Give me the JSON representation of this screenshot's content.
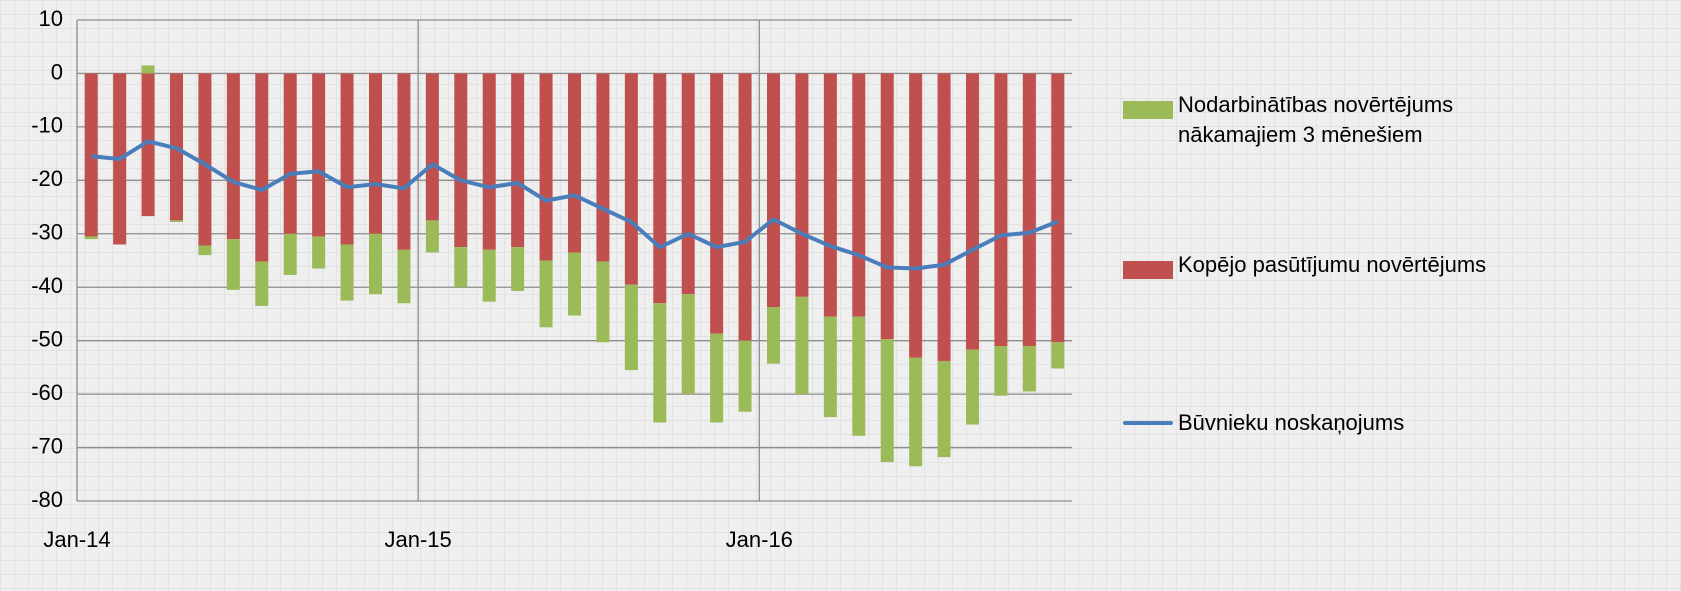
{
  "chart_data": {
    "type": "bar",
    "categories": [
      "Jan-14",
      null,
      null,
      null,
      null,
      null,
      null,
      null,
      null,
      null,
      null,
      null,
      "Jan-15",
      null,
      null,
      null,
      null,
      null,
      null,
      null,
      null,
      null,
      null,
      null,
      "Jan-16",
      null,
      null,
      null,
      null,
      null,
      null,
      null,
      null,
      null,
      null
    ],
    "stacked": true,
    "series": [
      {
        "name": "Kopējo pasūtījumu novērtējums",
        "type": "bar",
        "color": "#c0504d",
        "values": [
          -30.5,
          -32,
          -26.7,
          -27.5,
          -32.2,
          -31,
          -35.2,
          -30,
          -30.5,
          -32,
          -30,
          -33,
          -27.5,
          -32.5,
          -33,
          -32.5,
          -35,
          -33.5,
          -35.2,
          -39.5,
          -43,
          -41.3,
          -48.7,
          -50,
          -43.7,
          -41.8,
          -45.5,
          -45.5,
          -49.7,
          -53.2,
          -53.8,
          -51.7,
          -51,
          -51,
          -50.3
        ]
      },
      {
        "name": "Nodarbinātības novērtējums nākamajiem 3 mēnešiem",
        "type": "bar",
        "color": "#9bbb59",
        "values": [
          -0.5,
          0,
          1.5,
          -0.3,
          -1.8,
          -9.5,
          -8.3,
          -7.7,
          -6,
          -10.5,
          -11.3,
          -10,
          -6,
          -7.5,
          -9.7,
          -8.2,
          -12.5,
          -11.8,
          -15.1,
          -16,
          -22.3,
          -18.7,
          -16.6,
          -13.3,
          -10.6,
          -18.2,
          -18.8,
          -22.3,
          -23,
          -20.3,
          -18,
          -14,
          -9.3,
          -8.5,
          -4.9
        ]
      },
      {
        "name": "Būvnieku noskaņojums",
        "type": "line",
        "color": "#4a7ebb",
        "values": [
          -15.5,
          -16,
          -12.7,
          -14,
          -17,
          -20.3,
          -21.8,
          -18.8,
          -18.3,
          -21.3,
          -20.7,
          -21.5,
          -17,
          -20,
          -21.3,
          -20.5,
          -23.8,
          -22.8,
          -25.3,
          -27.8,
          -32.5,
          -30,
          -32.5,
          -31.5,
          -27.3,
          -30,
          -32.3,
          -34,
          -36.3,
          -36.5,
          -35.8,
          -33,
          -30.3,
          -29.8,
          -27.7
        ]
      }
    ],
    "legend_order": [
      1,
      0,
      2
    ],
    "ylim": [
      -80,
      10
    ],
    "yticks": [
      -80,
      -70,
      -60,
      -50,
      -40,
      -30,
      -20,
      -10,
      0,
      10
    ],
    "grid": true
  }
}
